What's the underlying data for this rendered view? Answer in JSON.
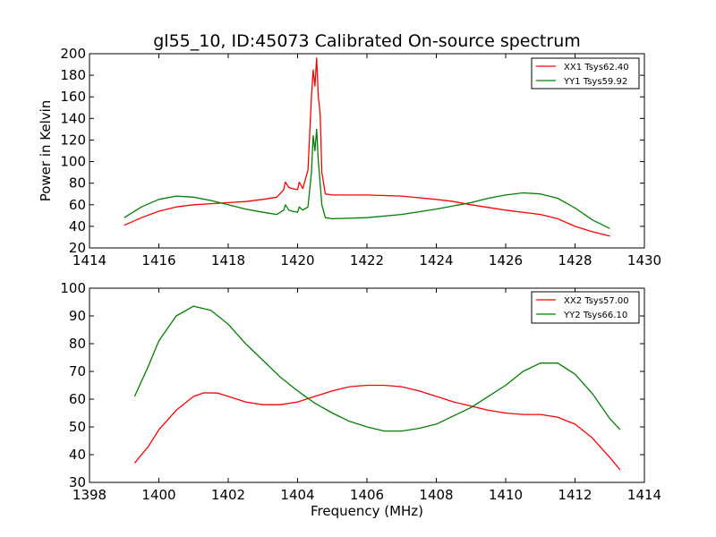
{
  "figure": {
    "title": "gl55_10, ID:45073 Calibrated On-source spectrum",
    "xlabel": "Frequency (MHz)"
  },
  "chart_data": [
    {
      "type": "line",
      "ylabel": "Power in Kelvin",
      "xlabel": "",
      "xlim": [
        1414,
        1430
      ],
      "ylim": [
        20,
        200
      ],
      "xticks": [
        1414,
        1416,
        1418,
        1420,
        1422,
        1424,
        1426,
        1428,
        1430
      ],
      "yticks": [
        20,
        40,
        60,
        80,
        100,
        120,
        140,
        160,
        180,
        200
      ],
      "grid": false,
      "legend_position": "top-right",
      "series": [
        {
          "name": "XX1 Tsys62.40",
          "color": "#ff0000",
          "points": [
            [
              1415.0,
              41
            ],
            [
              1415.5,
              48
            ],
            [
              1416.0,
              54
            ],
            [
              1416.5,
              58
            ],
            [
              1417.0,
              60
            ],
            [
              1417.5,
              61
            ],
            [
              1418.0,
              62
            ],
            [
              1418.5,
              63
            ],
            [
              1419.0,
              65
            ],
            [
              1419.4,
              67
            ],
            [
              1419.6,
              74
            ],
            [
              1419.65,
              81
            ],
            [
              1419.75,
              76
            ],
            [
              1419.85,
              75
            ],
            [
              1420.0,
              74
            ],
            [
              1420.05,
              81
            ],
            [
              1420.15,
              75
            ],
            [
              1420.3,
              92
            ],
            [
              1420.4,
              160
            ],
            [
              1420.45,
              185
            ],
            [
              1420.5,
              170
            ],
            [
              1420.55,
              196
            ],
            [
              1420.6,
              160
            ],
            [
              1420.65,
              145
            ],
            [
              1420.7,
              90
            ],
            [
              1420.8,
              70
            ],
            [
              1421.0,
              69
            ],
            [
              1422.0,
              69
            ],
            [
              1423.0,
              68
            ],
            [
              1424.0,
              65
            ],
            [
              1424.5,
              63
            ],
            [
              1425.0,
              60
            ],
            [
              1426.0,
              55
            ],
            [
              1427.0,
              51
            ],
            [
              1427.5,
              47
            ],
            [
              1428.0,
              40
            ],
            [
              1428.5,
              35
            ],
            [
              1429.0,
              31
            ]
          ]
        },
        {
          "name": "YY1 Tsys59.92",
          "color": "#008000",
          "points": [
            [
              1415.0,
              48
            ],
            [
              1415.5,
              58
            ],
            [
              1416.0,
              65
            ],
            [
              1416.5,
              68
            ],
            [
              1417.0,
              67
            ],
            [
              1417.5,
              64
            ],
            [
              1418.0,
              60
            ],
            [
              1418.5,
              56
            ],
            [
              1419.0,
              53
            ],
            [
              1419.4,
              51
            ],
            [
              1419.6,
              55
            ],
            [
              1419.65,
              60
            ],
            [
              1419.75,
              55
            ],
            [
              1419.85,
              54
            ],
            [
              1420.0,
              53
            ],
            [
              1420.05,
              58
            ],
            [
              1420.15,
              55
            ],
            [
              1420.3,
              58
            ],
            [
              1420.4,
              90
            ],
            [
              1420.45,
              124
            ],
            [
              1420.5,
              110
            ],
            [
              1420.55,
              130
            ],
            [
              1420.6,
              100
            ],
            [
              1420.65,
              80
            ],
            [
              1420.7,
              60
            ],
            [
              1420.8,
              48
            ],
            [
              1421.0,
              47
            ],
            [
              1422.0,
              48
            ],
            [
              1423.0,
              51
            ],
            [
              1424.0,
              56
            ],
            [
              1425.0,
              62
            ],
            [
              1425.5,
              66
            ],
            [
              1426.0,
              69
            ],
            [
              1426.5,
              71
            ],
            [
              1427.0,
              70
            ],
            [
              1427.5,
              66
            ],
            [
              1428.0,
              57
            ],
            [
              1428.5,
              46
            ],
            [
              1429.0,
              38
            ]
          ]
        }
      ]
    },
    {
      "type": "line",
      "ylabel": "",
      "xlabel": "Frequency (MHz)",
      "xlim": [
        1398,
        1414
      ],
      "ylim": [
        30,
        100
      ],
      "xticks": [
        1398,
        1400,
        1402,
        1404,
        1406,
        1408,
        1410,
        1412,
        1414
      ],
      "yticks": [
        30,
        40,
        50,
        60,
        70,
        80,
        90,
        100
      ],
      "grid": false,
      "legend_position": "top-right",
      "series": [
        {
          "name": "XX2 Tsys57.00",
          "color": "#ff0000",
          "points": [
            [
              1399.3,
              37
            ],
            [
              1399.7,
              43
            ],
            [
              1400.0,
              49
            ],
            [
              1400.5,
              56
            ],
            [
              1401.0,
              61
            ],
            [
              1401.3,
              62.3
            ],
            [
              1401.7,
              62.2
            ],
            [
              1402.0,
              61
            ],
            [
              1402.5,
              59
            ],
            [
              1403.0,
              58
            ],
            [
              1403.5,
              58
            ],
            [
              1404.0,
              59
            ],
            [
              1404.5,
              61
            ],
            [
              1405.0,
              63
            ],
            [
              1405.5,
              64.5
            ],
            [
              1406.0,
              65
            ],
            [
              1406.5,
              65
            ],
            [
              1407.0,
              64.5
            ],
            [
              1407.5,
              63
            ],
            [
              1408.0,
              61
            ],
            [
              1408.5,
              59
            ],
            [
              1409.0,
              57.5
            ],
            [
              1409.5,
              56
            ],
            [
              1410.0,
              55
            ],
            [
              1410.5,
              54.5
            ],
            [
              1411.0,
              54.5
            ],
            [
              1411.5,
              53.5
            ],
            [
              1412.0,
              51
            ],
            [
              1412.5,
              46
            ],
            [
              1413.0,
              39
            ],
            [
              1413.3,
              34.5
            ]
          ]
        },
        {
          "name": "YY2 Tsys66.10",
          "color": "#008000",
          "points": [
            [
              1399.3,
              61
            ],
            [
              1399.7,
              72
            ],
            [
              1400.0,
              81
            ],
            [
              1400.5,
              90
            ],
            [
              1401.0,
              93.5
            ],
            [
              1401.5,
              92
            ],
            [
              1402.0,
              87
            ],
            [
              1402.5,
              80
            ],
            [
              1403.0,
              74
            ],
            [
              1403.5,
              68
            ],
            [
              1404.0,
              63
            ],
            [
              1404.5,
              58.5
            ],
            [
              1405.0,
              55
            ],
            [
              1405.5,
              52
            ],
            [
              1406.0,
              50
            ],
            [
              1406.5,
              48.5
            ],
            [
              1407.0,
              48.5
            ],
            [
              1407.5,
              49.5
            ],
            [
              1408.0,
              51
            ],
            [
              1408.5,
              54
            ],
            [
              1409.0,
              57
            ],
            [
              1409.5,
              61
            ],
            [
              1410.0,
              65
            ],
            [
              1410.5,
              70
            ],
            [
              1411.0,
              73
            ],
            [
              1411.5,
              73
            ],
            [
              1412.0,
              69
            ],
            [
              1412.5,
              62
            ],
            [
              1413.0,
              53
            ],
            [
              1413.3,
              49
            ]
          ]
        }
      ]
    }
  ]
}
